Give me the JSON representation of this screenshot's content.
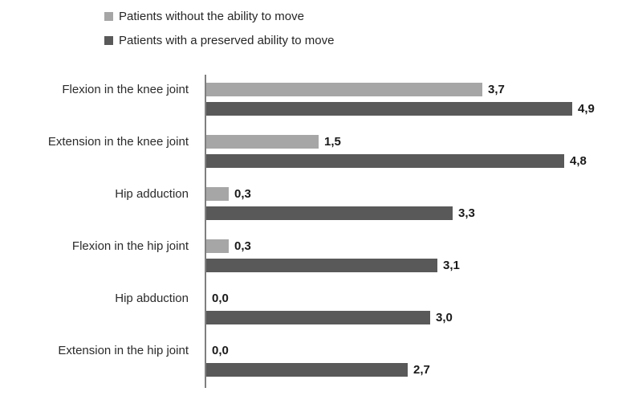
{
  "legend": [
    {
      "label": "Patients without the ability to move",
      "color": "#a6a6a6"
    },
    {
      "label": "Patients with a preserved ability to move",
      "color": "#595959"
    }
  ],
  "chart_data": {
    "type": "bar",
    "orientation": "horizontal",
    "title": "",
    "xlabel": "",
    "ylabel": "",
    "xlim": [
      0,
      5
    ],
    "grid": false,
    "legend_position": "top",
    "value_format": "comma-decimal",
    "categories": [
      "Flexion in the knee joint",
      "Extension in the knee joint",
      "Hip adduction",
      "Flexion in the hip joint",
      "Hip abduction",
      "Extension in the hip joint"
    ],
    "series": [
      {
        "name": "Patients without the ability to move",
        "color": "#a6a6a6",
        "values": [
          3.7,
          1.5,
          0.3,
          0.3,
          0.0,
          0.0
        ],
        "labels": [
          "3,7",
          "1,5",
          "0,3",
          "0,3",
          "0,0",
          "0,0"
        ]
      },
      {
        "name": "Patients with a preserved ability to move",
        "color": "#595959",
        "values": [
          4.9,
          4.8,
          3.3,
          3.1,
          3.0,
          2.7
        ],
        "labels": [
          "4,9",
          "4,8",
          "3,3",
          "3,1",
          "3,0",
          "2,7"
        ]
      }
    ]
  }
}
